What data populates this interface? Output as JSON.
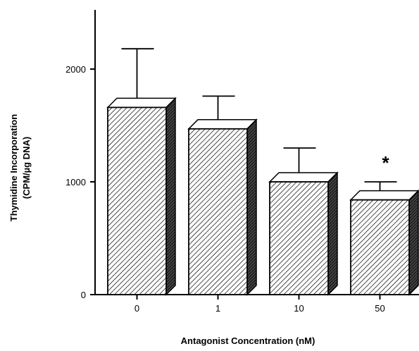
{
  "chart_data": {
    "type": "bar",
    "categories": [
      "0",
      "1",
      "10",
      "50"
    ],
    "values": [
      1660,
      1470,
      1000,
      840
    ],
    "error_upper": [
      2180,
      1760,
      1300,
      1000
    ],
    "annotations": [
      "",
      "",
      "",
      "*"
    ],
    "ylim": [
      0,
      2500
    ],
    "yticks": [
      0,
      1000,
      2000
    ],
    "ytick_labels": [
      "0",
      "1000",
      "2000"
    ],
    "xlabel": "Antagonist Concentration (nM)",
    "ylabel_line1": "Thymidine Incorporation",
    "ylabel_line2": "(CPM/µg DNA)",
    "grid": false,
    "bar_pattern": "diagonal-hatch",
    "colors": {
      "ink": "#000000",
      "bar_fill": "#ffffff",
      "bar_side": "#222222"
    }
  }
}
